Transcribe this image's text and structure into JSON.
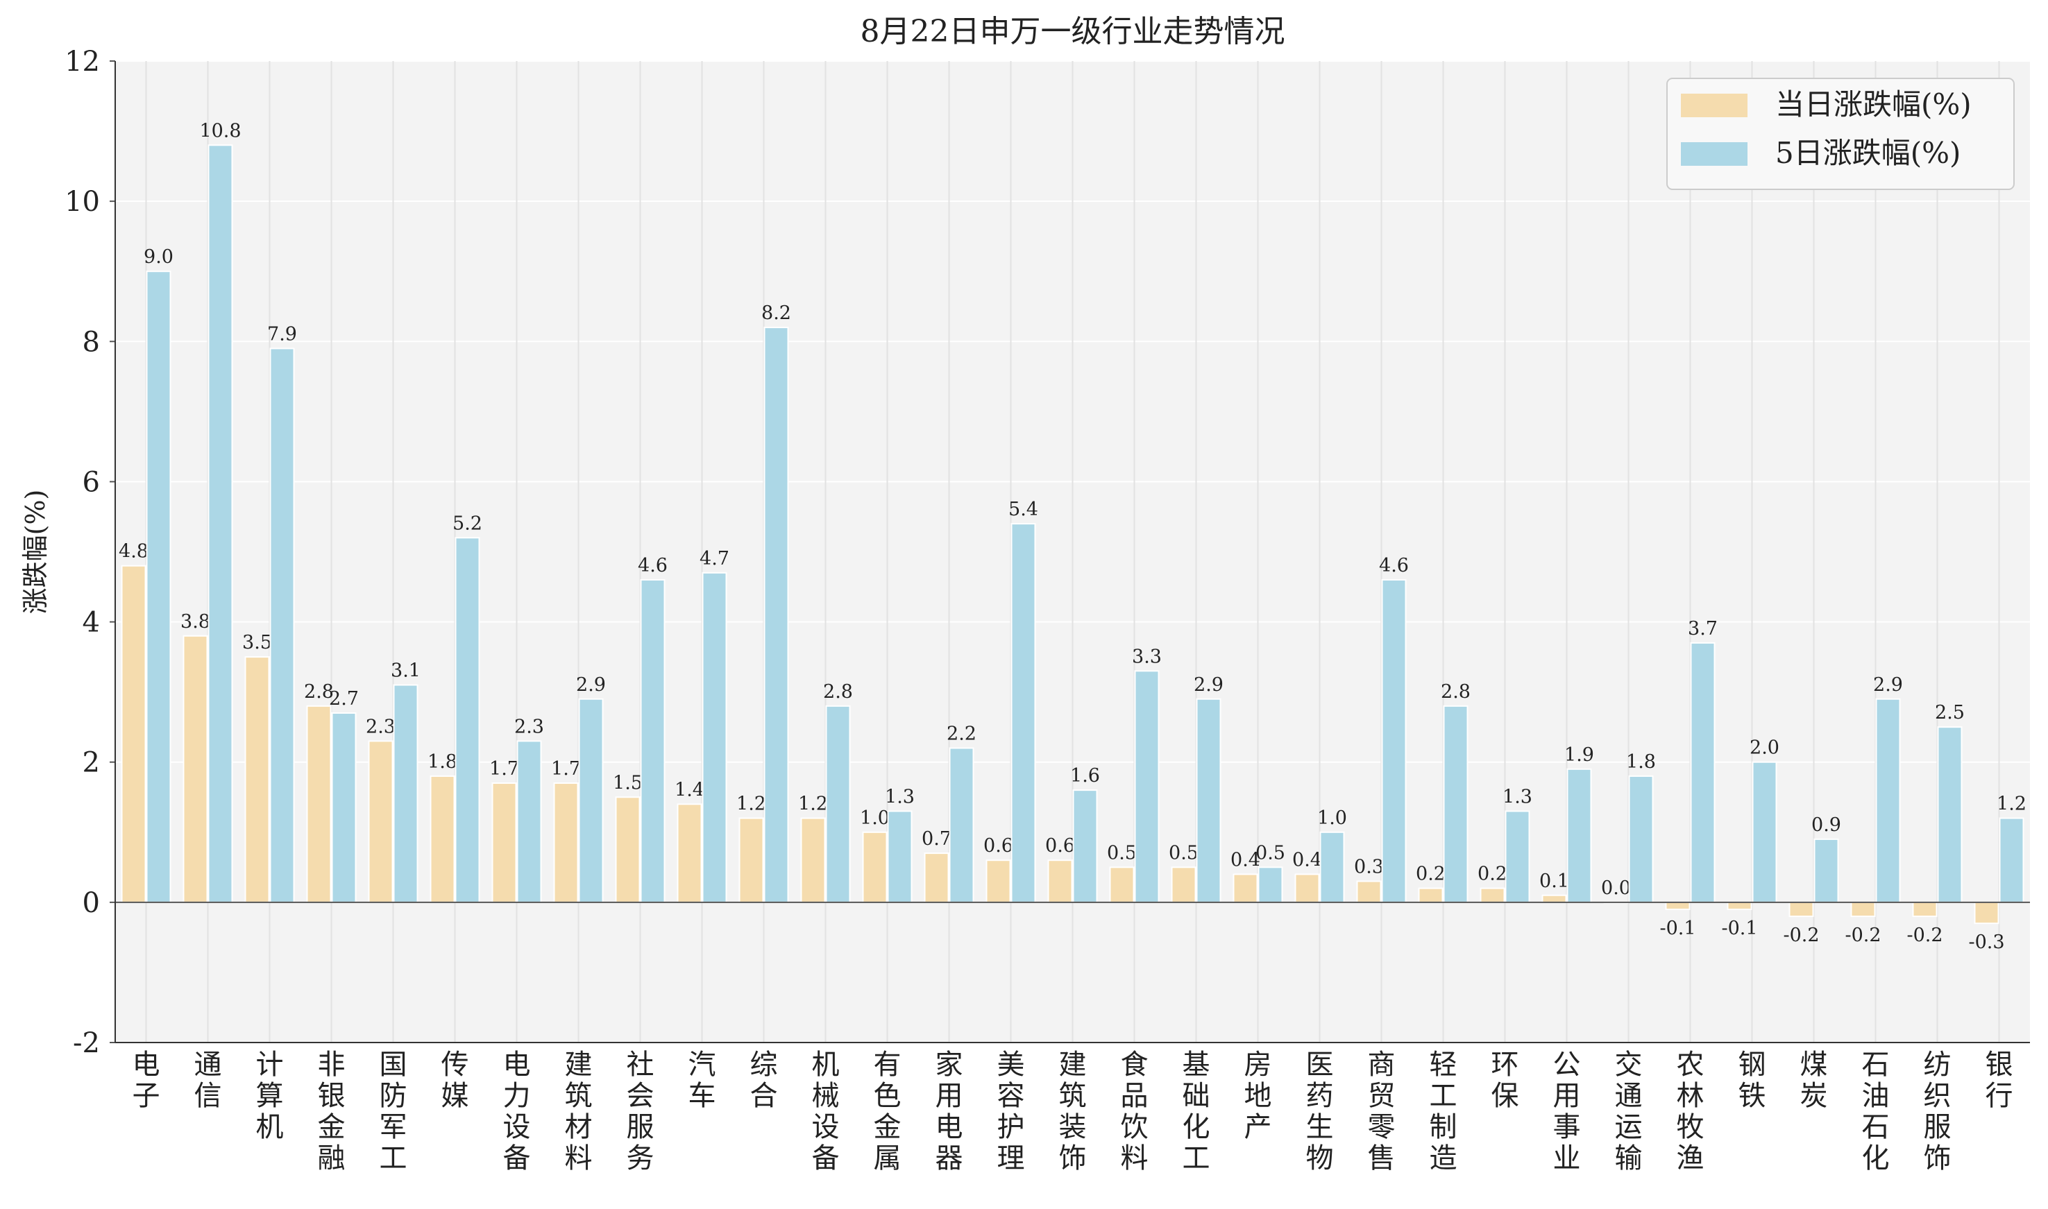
{
  "chart_data": {
    "type": "bar",
    "title": "8月22日申万一级行业走势情况",
    "xlabel": "",
    "ylabel": "涨跌幅(%)",
    "ylim": [
      -2,
      12
    ],
    "yticks": [
      -2,
      0,
      2,
      4,
      6,
      8,
      10,
      12
    ],
    "grid": true,
    "legend_position": "top-right",
    "categories": [
      "电子",
      "通信",
      "计算机",
      "非银金融",
      "国防军工",
      "传媒",
      "电力设备",
      "建筑材料",
      "社会服务",
      "汽车",
      "综合",
      "机械设备",
      "有色金属",
      "家用电器",
      "美容护理",
      "建筑装饰",
      "食品饮料",
      "基础化工",
      "房地产",
      "医药生物",
      "商贸零售",
      "轻工制造",
      "环保",
      "公用事业",
      "交通运输",
      "农林牧渔",
      "钢铁",
      "煤炭",
      "石油石化",
      "纺织服饰",
      "银行"
    ],
    "series": [
      {
        "name": "当日涨跌幅(%)",
        "color": "#f5dcae",
        "values": [
          4.8,
          3.8,
          3.5,
          2.8,
          2.3,
          1.8,
          1.7,
          1.7,
          1.5,
          1.4,
          1.2,
          1.2,
          1.0,
          0.7,
          0.6,
          0.6,
          0.5,
          0.5,
          0.4,
          0.4,
          0.3,
          0.2,
          0.2,
          0.1,
          0.0,
          -0.1,
          -0.1,
          -0.2,
          -0.2,
          -0.2,
          -0.3
        ],
        "labels": [
          "4.8",
          "3.8",
          "3.5",
          "2.8",
          "2.3",
          "1.8",
          "1.7",
          "1.7",
          "1.5",
          "1.4",
          "1.2",
          "1.2",
          "1.0",
          "0.7",
          "0.6",
          "0.6",
          "0.5",
          "0.5",
          "0.4",
          "0.4",
          "0.3",
          "0.2",
          "0.2",
          "0.1",
          "0.0",
          "-0.1",
          "-0.1",
          "-0.2",
          "-0.2",
          "-0.2",
          "-0.3"
        ]
      },
      {
        "name": "5日涨跌幅(%)",
        "color": "#acd7e6",
        "values": [
          9.0,
          10.8,
          7.9,
          2.7,
          3.1,
          5.2,
          2.3,
          2.9,
          4.6,
          4.7,
          8.2,
          2.8,
          1.3,
          2.2,
          5.4,
          1.6,
          3.3,
          2.9,
          0.5,
          1.0,
          4.6,
          2.8,
          1.3,
          1.9,
          1.8,
          3.7,
          2.0,
          0.9,
          2.9,
          2.5,
          1.2
        ],
        "labels": [
          "9.0",
          "10.8",
          "7.9",
          "2.7",
          "3.1",
          "5.2",
          "2.3",
          "2.9",
          "4.6",
          "4.7",
          "8.2",
          "2.8",
          "1.3",
          "2.2",
          "5.4",
          "1.6",
          "3.3",
          "2.9",
          "0.5",
          "1.0",
          "4.6",
          "2.8",
          "1.3",
          "1.9",
          "1.8",
          "3.7",
          "2.0",
          "0.9",
          "2.9",
          "2.5",
          "1.2"
        ]
      }
    ]
  }
}
